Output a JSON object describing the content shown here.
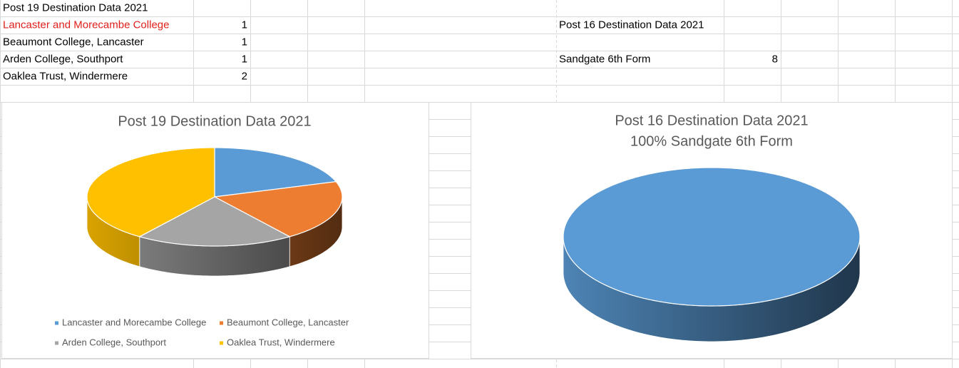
{
  "left_block": {
    "heading": "Post 19 Destination Data 2021",
    "rows": [
      [
        "Lancaster and Morecambe College",
        "1"
      ],
      [
        "Beaumont College, Lancaster",
        "1"
      ],
      [
        "Arden College, Southport",
        "1"
      ],
      [
        "Oaklea Trust, Windermere",
        "2"
      ]
    ]
  },
  "right_block": {
    "heading": "Post 16 Destination Data 2021",
    "rows": [
      [
        "Sandgate 6th Form",
        "8"
      ]
    ]
  },
  "chart_data": [
    {
      "type": "pie",
      "title": "Post 19 Destination Data 2021",
      "categories": [
        "Lancaster and Morecambe College",
        "Beaumont College, Lancaster",
        "Arden College, Southport",
        "Oaklea Trust, Windermere"
      ],
      "values": [
        1,
        1,
        1,
        2
      ],
      "colors": [
        "#5b9bd5",
        "#ed7d31",
        "#a5a5a5",
        "#ffc000"
      ],
      "legend": "bottom"
    },
    {
      "type": "pie",
      "title": "Post 16 Destination Data 2021",
      "subtitle": "100% Sandgate 6th Form",
      "values": [
        8
      ],
      "colors": [
        "#5b9bd5"
      ]
    }
  ]
}
